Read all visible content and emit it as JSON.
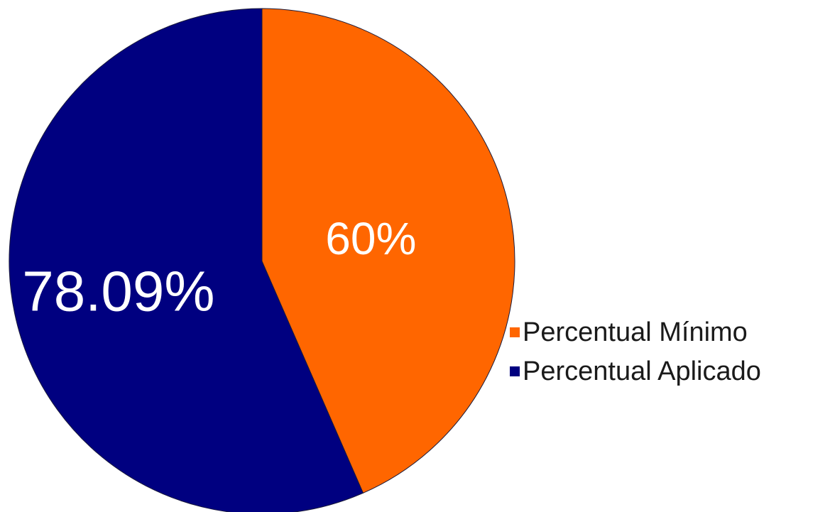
{
  "chart_data": {
    "type": "pie",
    "categories": [
      "Percentual Mínimo",
      "Percentual Aplicado"
    ],
    "values": [
      60,
      78.09
    ],
    "labels": [
      "60%",
      "78.09%"
    ],
    "colors": [
      "#ff6600",
      "#000080"
    ],
    "legend_position": "right"
  }
}
